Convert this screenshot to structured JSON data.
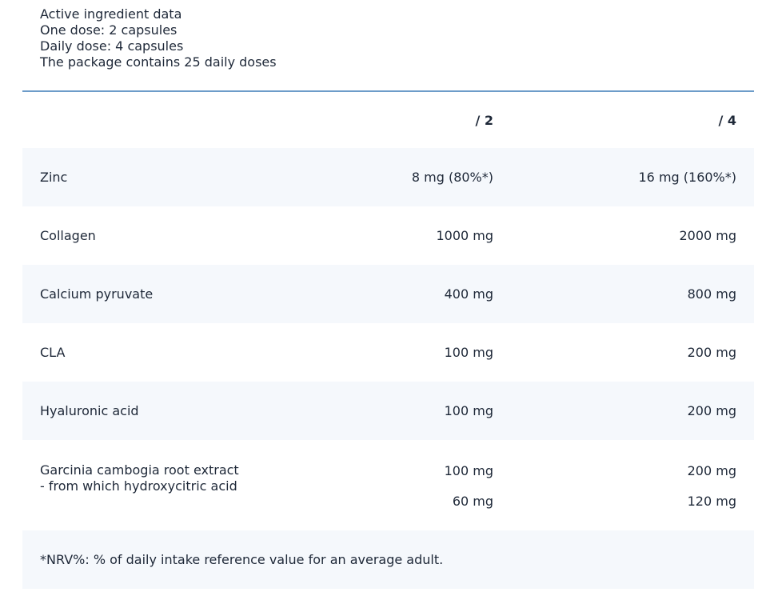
{
  "intro": {
    "title": "Active ingredient data",
    "one_dose": "One dose: 2 capsules",
    "daily_dose": "Daily dose: 4 capsules",
    "package": "The package contains 25 daily doses"
  },
  "table": {
    "headers": [
      "",
      "/ 2",
      "/ 4"
    ],
    "rows": [
      {
        "name": "Zinc",
        "dose": "8 mg (80%*)",
        "daily": "16 mg (160%*)"
      },
      {
        "name": "Collagen",
        "dose": "1000 mg",
        "daily": "2000 mg"
      },
      {
        "name": "Calcium pyruvate",
        "dose": "400 mg",
        "daily": "800 mg"
      },
      {
        "name": "CLA",
        "dose": "100 mg",
        "daily": "200 mg"
      },
      {
        "name": "Hyaluronic acid",
        "dose": "100 mg",
        "daily": "200 mg"
      }
    ],
    "garcinia": {
      "name": "Garcinia cambogia root extract",
      "sub_name": "- from which hydroxycitric acid",
      "dose": "100 mg",
      "daily": "200 mg",
      "sub_dose": "60 mg",
      "sub_daily": "120 mg"
    },
    "footnote": "*NRV%: % of daily intake reference value for an average adult."
  },
  "colors": {
    "text": "#1e2838",
    "rule": "#6d9cc9",
    "row_alt": "#f5f8fc"
  }
}
